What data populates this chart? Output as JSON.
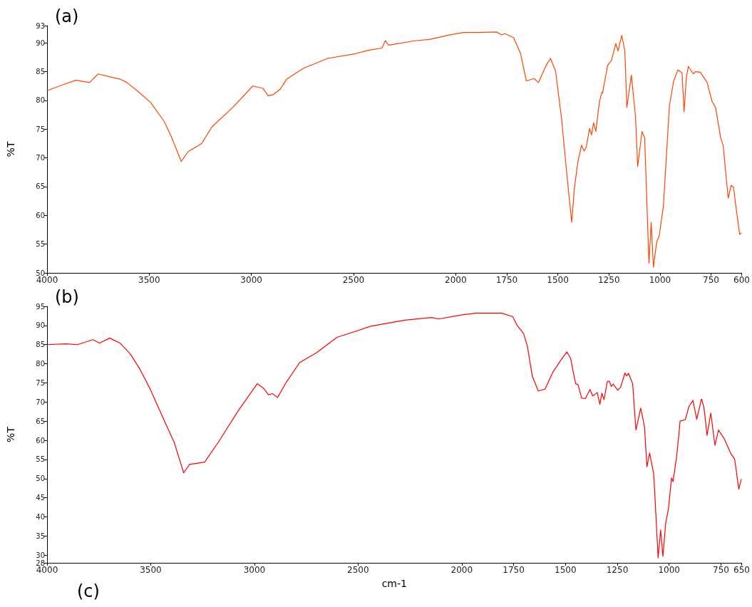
{
  "chart_data": [
    {
      "type": "line",
      "title": "(a)",
      "ylabel": "%T",
      "line_style": "solid",
      "marker": "none",
      "grid": false,
      "xlim": [
        4000,
        600
      ],
      "xticks": [
        4000,
        3500,
        3000,
        2500,
        2000,
        1750,
        1500,
        1250,
        1000,
        750,
        600
      ],
      "ylim": [
        50,
        93
      ],
      "yticks": [
        50,
        55,
        60,
        65,
        70,
        75,
        80,
        85,
        90,
        93
      ],
      "series": [
        {
          "color": "#ff4500",
          "x": [
            4000,
            3908,
            3859,
            3792,
            3750,
            3692,
            3642,
            3609,
            3559,
            3492,
            3426,
            3393,
            3343,
            3309,
            3243,
            3193,
            3093,
            2993,
            2943,
            2918,
            2893,
            2860,
            2827,
            2744,
            2627,
            2494,
            2428,
            2361,
            2344,
            2328,
            2195,
            2128,
            2028,
            1962,
            1884,
            1800,
            1775,
            1758,
            1716,
            1683,
            1654,
            1616,
            1595,
            1557,
            1536,
            1511,
            1482,
            1457,
            1432,
            1419,
            1402,
            1384,
            1371,
            1360,
            1345,
            1335,
            1325,
            1314,
            1297,
            1285,
            1281,
            1256,
            1237,
            1216,
            1205,
            1187,
            1172,
            1162,
            1140,
            1120,
            1109,
            1088,
            1075,
            1054,
            1043,
            1032,
            1016,
            1004,
            983,
            954,
            933,
            912,
            892,
            882,
            871,
            861,
            837,
            827,
            803,
            770,
            745,
            728,
            703,
            691,
            666,
            652,
            640,
            629,
            610,
            602
          ],
          "values": [
            81.7,
            82.9,
            83.5,
            83.1,
            84.6,
            84.1,
            83.7,
            83.1,
            81.7,
            79.6,
            76.3,
            73.8,
            69.4,
            71.1,
            72.5,
            75.4,
            78.7,
            82.5,
            82.1,
            80.8,
            81.0,
            81.9,
            83.7,
            85.6,
            87.3,
            88.1,
            88.7,
            89.1,
            90.4,
            89.6,
            90.4,
            90.6,
            91.4,
            91.8,
            91.8,
            91.9,
            91.4,
            91.6,
            90.9,
            88.2,
            83.4,
            83.8,
            83.1,
            86.1,
            87.3,
            85.1,
            76.9,
            67.6,
            58.8,
            64.7,
            69.3,
            72.2,
            71.2,
            72.0,
            75.1,
            74.0,
            76.1,
            74.6,
            79.6,
            81.4,
            81.3,
            86.1,
            87.0,
            89.9,
            88.6,
            91.3,
            88.6,
            78.8,
            84.4,
            77.3,
            68.5,
            74.6,
            73.5,
            51.7,
            58.8,
            51.0,
            55.4,
            56.4,
            61.7,
            79.0,
            83.4,
            85.3,
            84.8,
            78.0,
            84.0,
            85.9,
            84.6,
            85.0,
            84.9,
            83.2,
            79.8,
            78.8,
            73.5,
            72.2,
            63.0,
            65.2,
            64.9,
            61.7,
            56.7,
            56.9
          ]
        }
      ]
    },
    {
      "type": "line",
      "title": "(b)",
      "xlabel": "cm-1",
      "ylabel": "%T",
      "line_style": "solid",
      "marker": "none",
      "grid": false,
      "annotations": [
        "(c)"
      ],
      "xlim": [
        4000,
        650
      ],
      "xticks": [
        4000,
        3500,
        3000,
        2500,
        2000,
        1750,
        1500,
        1250,
        1000,
        750,
        650
      ],
      "ylim": [
        28,
        95
      ],
      "yticks": [
        28,
        30,
        35,
        40,
        45,
        50,
        55,
        60,
        65,
        70,
        75,
        80,
        85,
        90,
        95
      ],
      "series": [
        {
          "color": "#ff0000",
          "x": [
            4000,
            3910,
            3853,
            3779,
            3747,
            3698,
            3648,
            3599,
            3550,
            3501,
            3436,
            3387,
            3341,
            3313,
            3240,
            3174,
            3076,
            2986,
            2954,
            2932,
            2913,
            2888,
            2847,
            2782,
            2700,
            2602,
            2439,
            2275,
            2144,
            2112,
            1997,
            1932,
            1906,
            1807,
            1754,
            1734,
            1702,
            1684,
            1660,
            1631,
            1598,
            1561,
            1520,
            1493,
            1475,
            1451,
            1439,
            1422,
            1404,
            1381,
            1369,
            1360,
            1347,
            1334,
            1324,
            1314,
            1298,
            1289,
            1279,
            1270,
            1248,
            1234,
            1213,
            1205,
            1196,
            1176,
            1160,
            1137,
            1119,
            1107,
            1094,
            1074,
            1053,
            1041,
            1030,
            1016,
            1004,
            988,
            981,
            963,
            947,
            922,
            904,
            885,
            867,
            844,
            832,
            817,
            799,
            779,
            762,
            734,
            701,
            684,
            664,
            652
          ],
          "values": [
            85.0,
            85.2,
            85.0,
            86.3,
            85.4,
            86.7,
            85.4,
            82.6,
            78.4,
            73.2,
            65.3,
            59.5,
            51.5,
            53.7,
            54.3,
            59.5,
            67.9,
            74.8,
            73.5,
            71.9,
            72.2,
            71.2,
            75.1,
            80.3,
            82.9,
            86.9,
            89.8,
            91.4,
            92.1,
            91.7,
            92.8,
            93.2,
            93.2,
            93.2,
            92.3,
            90.1,
            87.9,
            84.7,
            76.8,
            72.9,
            73.4,
            77.8,
            81.1,
            83.1,
            81.4,
            74.8,
            74.5,
            71.0,
            70.9,
            73.3,
            71.6,
            71.9,
            72.5,
            69.4,
            72.3,
            70.6,
            75.4,
            75.5,
            74.1,
            74.7,
            73.1,
            73.9,
            77.6,
            76.8,
            77.5,
            74.8,
            62.7,
            68.4,
            63.7,
            53.1,
            56.7,
            51.1,
            29.3,
            36.6,
            29.7,
            38.6,
            41.9,
            50.2,
            49.2,
            56.1,
            65.0,
            65.4,
            68.9,
            70.4,
            65.5,
            70.8,
            68.6,
            61.3,
            67.1,
            58.7,
            62.7,
            60.4,
            56.4,
            55.1,
            47.3,
            49.8
          ]
        }
      ]
    }
  ]
}
